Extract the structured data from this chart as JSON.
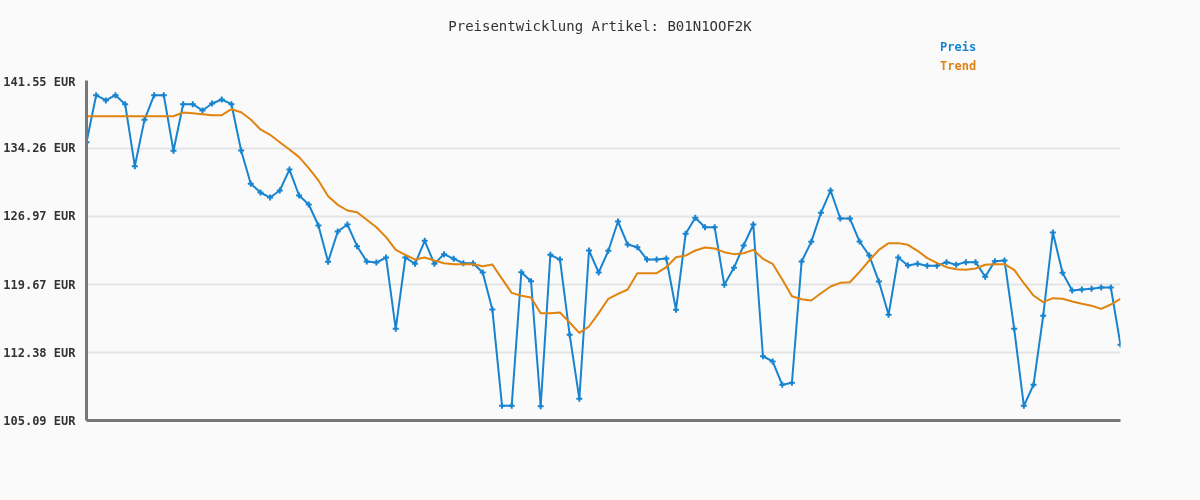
{
  "chart_data": {
    "type": "line",
    "title": "Preisentwicklung Artikel: B01N1OOF2K",
    "categories": [
      null,
      null,
      null,
      null,
      null,
      null,
      null,
      null,
      null,
      null,
      null,
      null,
      null,
      null,
      null,
      null,
      null,
      null,
      null,
      null,
      null,
      null,
      null,
      null,
      null,
      null,
      null,
      null,
      null,
      null,
      null,
      null,
      null,
      null,
      null,
      null,
      null,
      null,
      null,
      null,
      null,
      null,
      null,
      null,
      null,
      null,
      null,
      null,
      null,
      null,
      null,
      null,
      null,
      null,
      null,
      null,
      null,
      null,
      null,
      null,
      null,
      null,
      null,
      null,
      null,
      null,
      null,
      null,
      null,
      null,
      null,
      null,
      null,
      null,
      null,
      null,
      null,
      null,
      null,
      null,
      null,
      null,
      null,
      null,
      null,
      null,
      null,
      null,
      null,
      null,
      null,
      null,
      null,
      null,
      null,
      null,
      null,
      null,
      null,
      null,
      null,
      null,
      null,
      null,
      null,
      null,
      null,
      null
    ],
    "series": [
      {
        "name": "Preis",
        "color": "#1884cf",
        "marker": "cross",
        "values": [
          134.93,
          139.97,
          139.41,
          139.97,
          139.01,
          132.36,
          137.33,
          139.97,
          139.97,
          134.01,
          139.01,
          139.01,
          138.33,
          139.08,
          139.51,
          139.01,
          134.04,
          130.47,
          129.54,
          129.0,
          129.75,
          132.0,
          129.22,
          128.25,
          126.0,
          122.11,
          125.36,
          126.11,
          123.78,
          122.14,
          122.03,
          122.57,
          114.92,
          122.57,
          121.89,
          124.36,
          121.89,
          122.93,
          122.43,
          121.96,
          121.96,
          120.96,
          116.99,
          106.66,
          106.66,
          120.99,
          120.03,
          106.62,
          122.86,
          122.35,
          114.28,
          107.41,
          123.32,
          120.96,
          123.29,
          126.43,
          123.96,
          123.67,
          122.35,
          122.35,
          122.46,
          116.96,
          125.11,
          126.83,
          125.82,
          125.82,
          119.64,
          121.46,
          123.86,
          126.11,
          111.98,
          111.42,
          108.92,
          109.13,
          122.14,
          124.25,
          127.36,
          129.75,
          126.75,
          126.75,
          124.28,
          122.78,
          119.99,
          116.42,
          122.57,
          121.71,
          121.89,
          121.68,
          121.68,
          122.07,
          121.79,
          122.07,
          122.07,
          120.5,
          122.18,
          122.25,
          114.92,
          106.66,
          108.92,
          116.32,
          125.25,
          120.93,
          119.03,
          119.14,
          119.21,
          119.35,
          119.35,
          113.2
        ]
      },
      {
        "name": "Trend",
        "color": "#e0830f",
        "marker": "none",
        "values": [
          137.72,
          137.72,
          137.72,
          137.72,
          137.72,
          137.72,
          137.72,
          137.72,
          137.72,
          137.72,
          138.12,
          138.04,
          137.94,
          137.83,
          137.83,
          138.47,
          138.15,
          137.37,
          136.3,
          135.73,
          134.93,
          134.15,
          133.33,
          132.15,
          130.83,
          129.14,
          128.22,
          127.61,
          127.43,
          126.61,
          125.82,
          124.75,
          123.39,
          122.86,
          122.35,
          122.57,
          122.25,
          121.96,
          121.85,
          121.85,
          121.85,
          121.64,
          121.82,
          120.28,
          118.78,
          118.46,
          118.28,
          116.6,
          116.6,
          116.67,
          115.6,
          114.49,
          115.17,
          116.6,
          118.14,
          118.67,
          119.14,
          120.89,
          120.89,
          120.89,
          121.53,
          122.6,
          122.78,
          123.32,
          123.64,
          123.53,
          123.14,
          122.93,
          123.03,
          123.39,
          122.43,
          121.89,
          120.21,
          118.42,
          118.1,
          117.96,
          118.74,
          119.46,
          119.85,
          119.92,
          121.03,
          122.25,
          123.39,
          124.11,
          124.11,
          123.93,
          123.29,
          122.5,
          122.0,
          121.53,
          121.32,
          121.25,
          121.39,
          121.79,
          121.85,
          121.85,
          121.25,
          119.81,
          118.49,
          117.78,
          118.21,
          118.14,
          117.85,
          117.6,
          117.39,
          117.06,
          117.53,
          118.14
        ]
      }
    ],
    "ylim": [
      105.09,
      141.55
    ],
    "yticks": [
      {
        "value": 105.09,
        "label": "105.09 EUR"
      },
      {
        "value": 112.38,
        "label": "112.38 EUR"
      },
      {
        "value": 119.67,
        "label": "119.67 EUR"
      },
      {
        "value": 126.97,
        "label": "126.97 EUR"
      },
      {
        "value": 134.26,
        "label": "134.26 EUR"
      },
      {
        "value": 141.55,
        "label": "141.55 EUR"
      }
    ],
    "grid": "y",
    "tick_labels": "y"
  }
}
